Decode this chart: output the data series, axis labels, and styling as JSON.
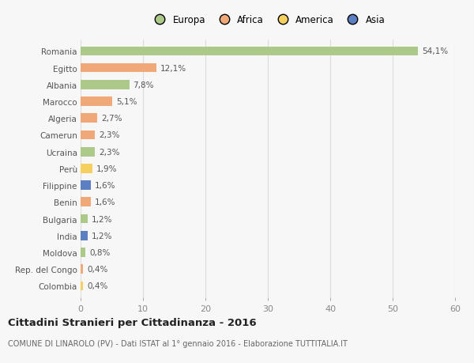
{
  "countries": [
    "Romania",
    "Egitto",
    "Albania",
    "Marocco",
    "Algeria",
    "Camerun",
    "Ucraina",
    "Perù",
    "Filippine",
    "Benin",
    "Bulgaria",
    "India",
    "Moldova",
    "Rep. del Congo",
    "Colombia"
  ],
  "values": [
    54.1,
    12.1,
    7.8,
    5.1,
    2.7,
    2.3,
    2.3,
    1.9,
    1.6,
    1.6,
    1.2,
    1.2,
    0.8,
    0.4,
    0.4
  ],
  "labels": [
    "54,1%",
    "12,1%",
    "7,8%",
    "5,1%",
    "2,7%",
    "2,3%",
    "2,3%",
    "1,9%",
    "1,6%",
    "1,6%",
    "1,2%",
    "1,2%",
    "0,8%",
    "0,4%",
    "0,4%"
  ],
  "colors": [
    "#adc98a",
    "#f0a878",
    "#adc98a",
    "#f0a878",
    "#f0a878",
    "#f0a878",
    "#adc98a",
    "#f5d060",
    "#5b7fc0",
    "#f0a878",
    "#adc98a",
    "#5b7fc0",
    "#adc98a",
    "#f0a878",
    "#f5d060"
  ],
  "legend_labels": [
    "Europa",
    "Africa",
    "America",
    "Asia"
  ],
  "legend_colors": [
    "#adc98a",
    "#f0a878",
    "#f5d060",
    "#5b7fc0"
  ],
  "title": "Cittadini Stranieri per Cittadinanza - 2016",
  "subtitle": "COMUNE DI LINAROLO (PV) - Dati ISTAT al 1° gennaio 2016 - Elaborazione TUTTITALIA.IT",
  "xlim": [
    0,
    60
  ],
  "xticks": [
    0,
    10,
    20,
    30,
    40,
    50,
    60
  ],
  "bg_color": "#f7f7f7",
  "grid_color": "#dddddd",
  "bar_height": 0.55,
  "label_fontsize": 7.5,
  "ytick_fontsize": 7.5,
  "xtick_fontsize": 8,
  "legend_fontsize": 8.5,
  "title_fontsize": 9.5,
  "subtitle_fontsize": 7.0
}
